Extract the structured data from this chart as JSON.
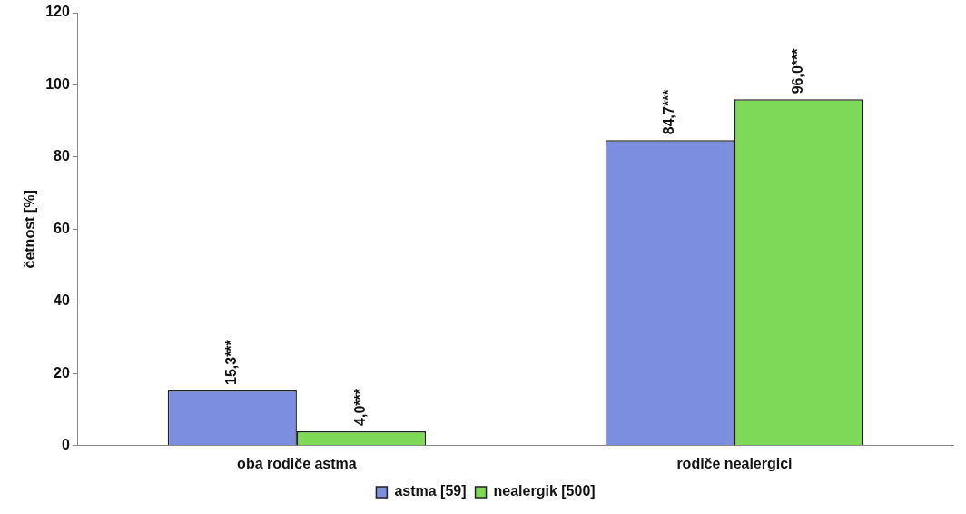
{
  "chart_data": {
    "type": "bar",
    "ylabel": "četnost [%]",
    "categories": [
      "oba rodiče astma",
      "rodiče nealergici"
    ],
    "series": [
      {
        "name": "astma [59]",
        "color": "#7b8ee0",
        "values": [
          15.3,
          84.7
        ],
        "value_labels": [
          "15,3***",
          "84,7***"
        ]
      },
      {
        "name": "nealergik [500]",
        "color": "#7ed957",
        "values": [
          4.0,
          96.0
        ],
        "value_labels": [
          "4,0***",
          "96,0***"
        ]
      }
    ],
    "ylim": [
      0,
      120
    ],
    "yticks": [
      0,
      20,
      40,
      60,
      80,
      100,
      120
    ],
    "grid": false,
    "legend": "bottom"
  }
}
